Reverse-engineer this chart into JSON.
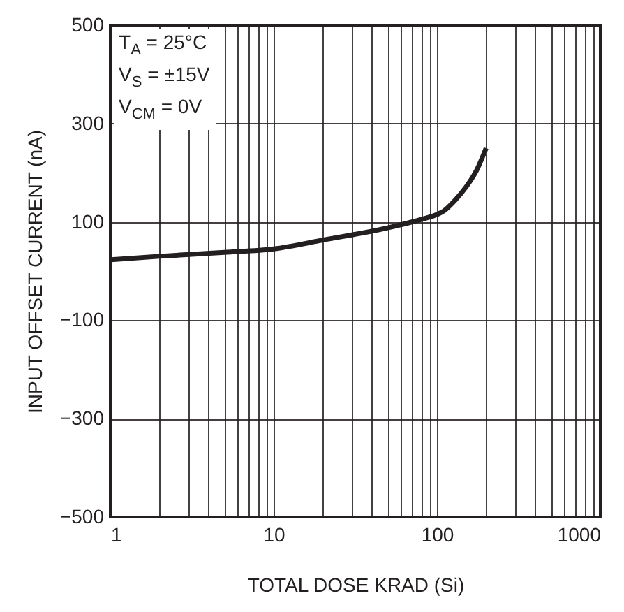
{
  "chart_data": {
    "type": "line",
    "xlabel": "TOTAL DOSE KRAD (Si)",
    "ylabel": "INPUT OFFSET CURRENT (nA)",
    "annotations": [
      "T$_{A}$ = 25°C",
      "V$_{S}$ = ±15V",
      "V$_{CM}$ = 0V"
    ],
    "x": [
      1,
      2,
      5,
      10,
      20,
      50,
      80,
      100,
      110,
      130,
      150,
      175,
      200
    ],
    "series": [
      {
        "color": "#231f20",
        "values": [
          23,
          30,
          38,
          45,
          63,
          88,
          105,
          115,
          122,
          145,
          170,
          205,
          250
        ]
      }
    ],
    "log": "x",
    "xlim": [
      1,
      1000
    ],
    "ylim": [
      -500,
      500
    ],
    "xticks": [
      1,
      {
        "value": 2,
        "label": null
      },
      {
        "value": 3,
        "label": null
      },
      {
        "value": 4,
        "label": null
      },
      {
        "value": 5,
        "label": null
      },
      {
        "value": 6,
        "label": null
      },
      {
        "value": 7,
        "label": null
      },
      {
        "value": 8,
        "label": null
      },
      {
        "value": 9,
        "label": null
      },
      10,
      {
        "value": 20,
        "label": null
      },
      {
        "value": 30,
        "label": null
      },
      {
        "value": 40,
        "label": null
      },
      {
        "value": 50,
        "label": null
      },
      {
        "value": 60,
        "label": null
      },
      {
        "value": 70,
        "label": null
      },
      {
        "value": 80,
        "label": null
      },
      {
        "value": 90,
        "label": null
      },
      100,
      {
        "value": 200,
        "label": null
      },
      {
        "value": 300,
        "label": null
      },
      {
        "value": 400,
        "label": null
      },
      {
        "value": 500,
        "label": null
      },
      {
        "value": 600,
        "label": null
      },
      {
        "value": 700,
        "label": null
      },
      {
        "value": 800,
        "label": null
      },
      {
        "value": 900,
        "label": null
      },
      1000
    ],
    "yticks": [
      {
        "value": -500,
        "label": "−500"
      },
      {
        "value": -300,
        "label": "−300"
      },
      {
        "value": -100,
        "label": "−100"
      },
      100,
      300,
      500
    ],
    "grid": true,
    "marker": "none",
    "line_style": "solid"
  }
}
